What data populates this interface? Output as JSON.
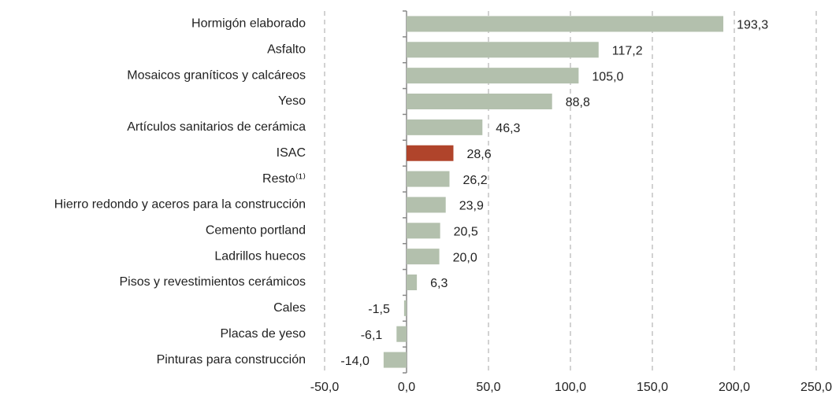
{
  "chart_data": {
    "type": "bar",
    "orientation": "horizontal",
    "categories": [
      "Hormigón elaborado",
      "Asfalto",
      "Mosaicos graníticos y calcáreos",
      "Yeso",
      "Artículos sanitarios de cerámica",
      "ISAC",
      "Resto⁽¹⁾",
      "Hierro redondo y aceros para la construcción",
      "Cemento portland",
      "Ladrillos huecos",
      "Pisos y revestimientos cerámicos",
      "Cales",
      "Placas de yeso",
      "Pinturas para construcción"
    ],
    "values": [
      193.3,
      117.2,
      105.0,
      88.8,
      46.3,
      28.6,
      26.2,
      23.9,
      20.5,
      20.0,
      6.3,
      -1.5,
      -6.1,
      -14.0
    ],
    "value_labels": [
      "193,3",
      "117,2",
      "105,0",
      "88,8",
      "46,3",
      "28,6",
      "26,2",
      "23,9",
      "20,5",
      "20,0",
      "6,3",
      "-1,5",
      "-6,1",
      "-14,0"
    ],
    "colors": [
      "#b3c0ad",
      "#b3c0ad",
      "#b3c0ad",
      "#b3c0ad",
      "#b3c0ad",
      "#b0442b",
      "#b3c0ad",
      "#b3c0ad",
      "#b3c0ad",
      "#b3c0ad",
      "#b3c0ad",
      "#b3c0ad",
      "#b3c0ad",
      "#b3c0ad"
    ],
    "xlim": [
      -50,
      250
    ],
    "xticks": [
      {
        "value": -50,
        "label": "-50,0"
      },
      {
        "value": 0,
        "label": "0,0"
      },
      {
        "value": 50,
        "label": "50,0"
      },
      {
        "value": 100,
        "label": "100,0"
      },
      {
        "value": 150,
        "label": "150,0"
      },
      {
        "value": 200,
        "label": "200,0"
      },
      {
        "value": 250,
        "label": "250,0"
      }
    ],
    "grid": true
  }
}
